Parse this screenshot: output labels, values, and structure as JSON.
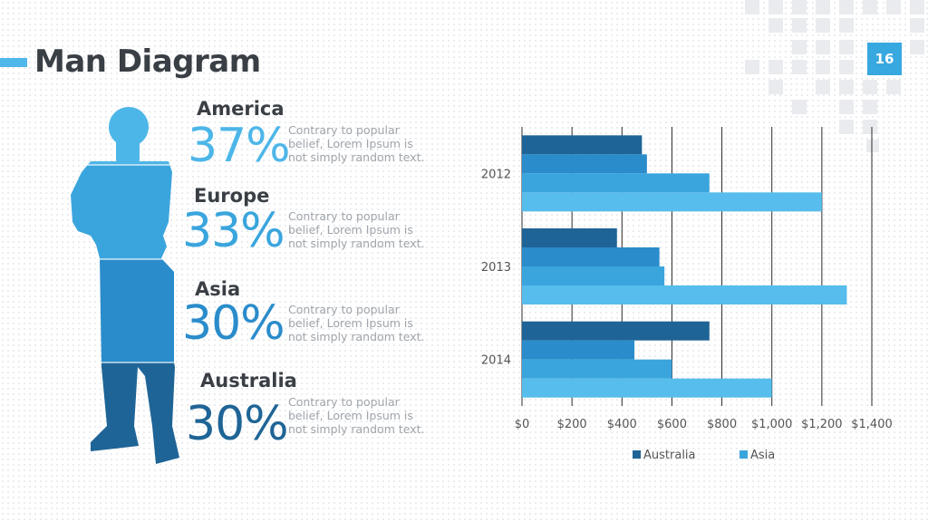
{
  "slide": {
    "title": "Man Diagram",
    "page_number": "16",
    "accent_color": "#4fb8ea"
  },
  "regions": [
    {
      "name": "America",
      "percent": "37%",
      "description": "Contrary to popular belief, Lorem Ipsum is not simply random text.",
      "color": "#4db6e8"
    },
    {
      "name": "Europe",
      "percent": "33%",
      "description": "Contrary to popular belief, Lorem Ipsum is not simply random text.",
      "color": "#3aa5dd"
    },
    {
      "name": "Asia",
      "percent": "30%",
      "description": "Contrary to popular belief, Lorem Ipsum is not simply random text.",
      "color": "#2a8ccb"
    },
    {
      "name": "Australia",
      "percent": "30%",
      "description": "Contrary to popular belief, Lorem Ipsum is not simply random text.",
      "color": "#1f6496"
    }
  ],
  "chart_data": {
    "type": "bar",
    "orientation": "horizontal",
    "categories": [
      "2012",
      "2013",
      "2014"
    ],
    "series": [
      {
        "name": "Australia",
        "color": "#1f6496",
        "values": [
          480,
          380,
          750
        ]
      },
      {
        "name": "",
        "color": "#2a8ccb",
        "values": [
          500,
          550,
          450
        ]
      },
      {
        "name": "",
        "color": "#3aa5dd",
        "values": [
          750,
          570,
          600
        ]
      },
      {
        "name": "Asia",
        "color": "#56bdec",
        "values": [
          1200,
          1300,
          1000
        ]
      }
    ],
    "xlim": [
      0,
      1400
    ],
    "x_ticks": [
      "$0",
      "$200",
      "$400",
      "$600",
      "$800",
      "$1,000",
      "$1,200",
      "$1,400"
    ],
    "grid": "vertical",
    "legend_position": "bottom",
    "legend": [
      {
        "name": "Australia",
        "color": "#1f6496"
      },
      {
        "name": "Asia",
        "color": "#3aa5dd"
      }
    ]
  }
}
